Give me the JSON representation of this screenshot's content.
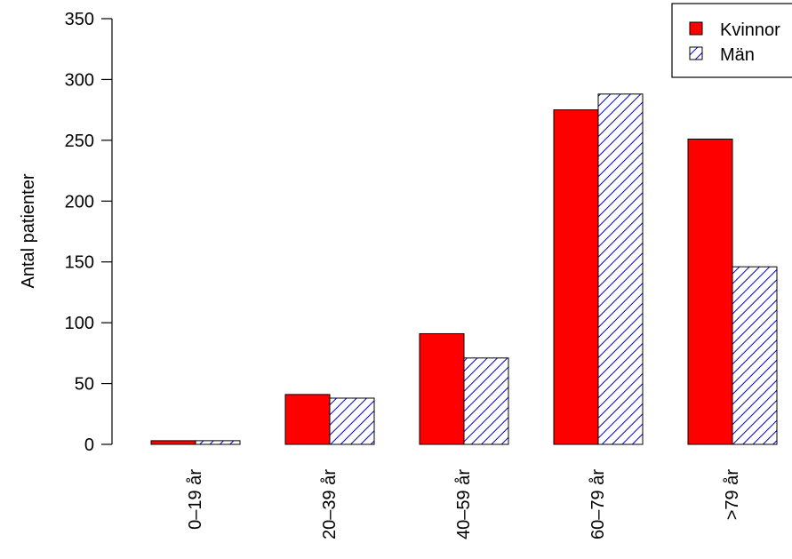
{
  "chart_data": {
    "type": "bar",
    "title": "",
    "xlabel": "",
    "ylabel": "Antal patienter",
    "ylim": [
      0,
      350
    ],
    "yticks": [
      0,
      50,
      100,
      150,
      200,
      250,
      300,
      350
    ],
    "categories": [
      "0–19 år",
      "20–39 år",
      "40–59 år",
      "60–79 år",
      ">79 år"
    ],
    "series": [
      {
        "name": "Kvinnor",
        "values": [
          3,
          41,
          91,
          275,
          251
        ],
        "color": "#ff0000",
        "pattern": "solid"
      },
      {
        "name": "Män",
        "values": [
          3,
          38,
          71,
          288,
          146
        ],
        "color": "#0000cc",
        "pattern": "hatched"
      }
    ],
    "grid": false,
    "legend_position": "top-right"
  }
}
